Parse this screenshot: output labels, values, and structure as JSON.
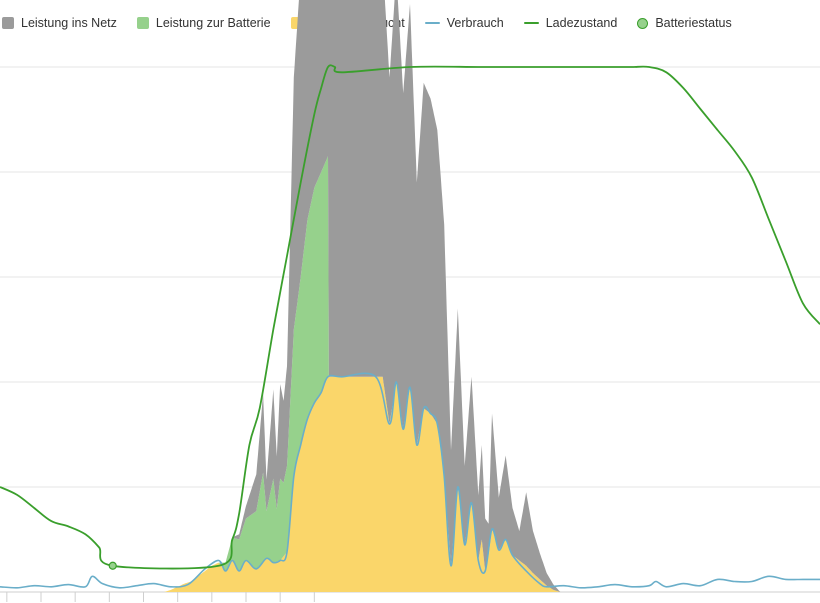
{
  "chart_data": {
    "type": "area",
    "title": "",
    "xlabel": "",
    "ylabel": "",
    "legend_position": "top-left",
    "grid": true,
    "x_range": [
      0,
      24
    ],
    "y_range": [
      0,
      5
    ],
    "soc_range": [
      0,
      100
    ],
    "x_ticks": [
      0.2,
      1.2,
      2.2,
      3.2,
      4.2,
      5.2,
      6.2,
      7.2,
      8.2,
      9.2
    ],
    "series": [
      {
        "name": "Leistung ins Netz",
        "kind": "area",
        "color": "#9b9b9b",
        "x": [
          6.8,
          7.0,
          7.2,
          7.5,
          7.7,
          7.8,
          8.0,
          8.1,
          8.2,
          8.3,
          8.4,
          8.6,
          8.8,
          9.0,
          9.2,
          9.4,
          9.6,
          9.8,
          10.0,
          10.2,
          10.4,
          10.6,
          10.8,
          11.0,
          11.2,
          11.4,
          11.6,
          11.8,
          12.0,
          12.2,
          12.4,
          12.6,
          12.8,
          13.0,
          13.2,
          13.4,
          13.6,
          13.8,
          14.0,
          14.1,
          14.2,
          14.3,
          14.4,
          14.6,
          14.8,
          15.0,
          15.2,
          15.4,
          15.6,
          15.8,
          16.0,
          16.2,
          16.4
        ],
        "values": [
          0.0,
          0.05,
          0.12,
          0.35,
          0.75,
          0.3,
          0.85,
          0.5,
          0.9,
          0.78,
          0.95,
          2.4,
          2.9,
          3.1,
          3.4,
          3.7,
          3.85,
          3.95,
          3.97,
          4.0,
          4.0,
          4.0,
          4.0,
          3.97,
          3.95,
          3.3,
          3.9,
          3.2,
          3.65,
          2.5,
          3.1,
          3.0,
          2.8,
          2.4,
          1.1,
          1.7,
          0.75,
          1.2,
          0.62,
          0.9,
          0.5,
          0.3,
          1.1,
          0.5,
          0.8,
          0.45,
          0.28,
          0.7,
          0.4,
          0.25,
          0.12,
          0.05,
          0.0
        ]
      },
      {
        "name": "Leistung zur Batterie",
        "kind": "area",
        "color": "#96d18c",
        "x": [
          6.4,
          6.6,
          6.8,
          7.0,
          7.2,
          7.5,
          7.7,
          7.8,
          8.0,
          8.1,
          8.2,
          8.3,
          8.4,
          8.6,
          8.8,
          9.0,
          9.2,
          9.4,
          9.6
        ],
        "values": [
          0.0,
          0.08,
          0.22,
          0.3,
          0.4,
          0.55,
          0.85,
          0.45,
          0.8,
          0.5,
          0.78,
          0.7,
          0.82,
          1.4,
          1.6,
          1.9,
          2.05,
          2.1,
          2.1
        ]
      },
      {
        "name": "Direkt verbraucht",
        "kind": "area",
        "color": "#fad66a",
        "x": [
          4.8,
          5.0,
          5.2,
          5.4,
          5.6,
          5.8,
          6.0,
          6.2,
          6.4,
          6.6,
          6.8,
          7.0,
          7.2,
          7.5,
          7.8,
          8.0,
          8.2,
          8.4,
          8.6,
          8.8,
          9.0,
          9.2,
          9.4,
          9.6,
          9.8,
          10.0,
          10.2,
          10.4,
          10.6,
          10.8,
          11.0,
          11.2,
          11.4,
          11.6,
          11.8,
          12.0,
          12.2,
          12.4,
          12.6,
          12.8,
          13.0,
          13.2,
          13.4,
          13.6,
          13.8,
          14.0,
          14.1,
          14.2,
          14.3,
          14.4,
          14.6,
          14.8,
          15.0,
          15.2,
          15.4,
          15.6,
          15.8,
          16.0,
          16.2,
          16.4
        ],
        "values": [
          0.0,
          0.02,
          0.05,
          0.08,
          0.1,
          0.15,
          0.2,
          0.25,
          0.28,
          0.2,
          0.3,
          0.2,
          0.3,
          0.22,
          0.32,
          0.28,
          0.3,
          0.38,
          1.1,
          1.4,
          1.65,
          1.8,
          1.9,
          2.05,
          2.05,
          2.05,
          2.05,
          2.05,
          2.05,
          2.05,
          2.05,
          2.05,
          1.6,
          2.0,
          1.55,
          1.95,
          1.4,
          1.75,
          1.7,
          1.6,
          1.1,
          0.25,
          1.0,
          0.45,
          0.85,
          0.3,
          0.5,
          0.2,
          0.35,
          0.6,
          0.4,
          0.5,
          0.35,
          0.3,
          0.25,
          0.18,
          0.12,
          0.06,
          0.02,
          0.0
        ]
      },
      {
        "name": "Verbrauch",
        "kind": "line",
        "color": "#6aaec9",
        "x": [
          0.0,
          0.5,
          1.0,
          1.5,
          2.0,
          2.5,
          2.7,
          3.0,
          3.5,
          4.0,
          4.5,
          5.0,
          5.5,
          6.0,
          6.4,
          6.6,
          6.8,
          7.0,
          7.2,
          7.5,
          7.8,
          8.0,
          8.2,
          8.4,
          8.6,
          8.8,
          9.0,
          9.2,
          9.4,
          9.6,
          10.0,
          11.0,
          11.4,
          11.6,
          11.8,
          12.0,
          12.2,
          12.4,
          12.6,
          12.8,
          13.0,
          13.2,
          13.4,
          13.6,
          13.8,
          14.0,
          14.2,
          14.4,
          14.6,
          14.8,
          15.0,
          15.4,
          15.8,
          16.0,
          16.5,
          17.0,
          17.5,
          18.0,
          18.5,
          19.0,
          19.2,
          19.5,
          20.0,
          20.5,
          21.0,
          21.5,
          22.0,
          22.5,
          23.0,
          23.5,
          24.0
        ],
        "values": [
          0.05,
          0.04,
          0.06,
          0.05,
          0.07,
          0.05,
          0.15,
          0.08,
          0.04,
          0.06,
          0.08,
          0.05,
          0.07,
          0.22,
          0.3,
          0.2,
          0.3,
          0.2,
          0.3,
          0.22,
          0.32,
          0.28,
          0.3,
          0.38,
          1.1,
          1.4,
          1.65,
          1.8,
          1.9,
          2.05,
          2.05,
          2.05,
          1.6,
          2.0,
          1.55,
          1.95,
          1.4,
          1.75,
          1.7,
          1.6,
          1.1,
          0.25,
          1.0,
          0.45,
          0.85,
          0.3,
          0.2,
          0.6,
          0.4,
          0.5,
          0.35,
          0.2,
          0.08,
          0.05,
          0.06,
          0.04,
          0.05,
          0.07,
          0.05,
          0.06,
          0.1,
          0.05,
          0.08,
          0.06,
          0.12,
          0.1,
          0.1,
          0.15,
          0.12,
          0.12,
          0.12
        ]
      },
      {
        "name": "Ladezustand",
        "kind": "line",
        "axis": "soc",
        "color": "#3a9f2c",
        "x": [
          0.0,
          0.5,
          1.0,
          1.5,
          2.0,
          2.5,
          2.9,
          3.3,
          6.4,
          6.8,
          7.0,
          7.3,
          7.6,
          8.0,
          8.4,
          8.8,
          9.2,
          9.4,
          9.6,
          9.8,
          10.0,
          12.0,
          14.0,
          15.0,
          16.0,
          17.0,
          18.0,
          18.5,
          19.0,
          19.5,
          20.0,
          20.5,
          21.0,
          21.5,
          22.0,
          22.5,
          23.0,
          23.5,
          24.0
        ],
        "values": [
          20,
          18.5,
          16,
          13.5,
          12.5,
          11,
          8.5,
          5,
          5,
          10,
          15,
          28,
          35,
          50,
          64,
          78,
          91,
          96,
          100,
          100,
          99,
          100,
          100,
          100,
          100,
          100,
          100,
          100,
          100,
          99,
          96,
          92,
          88,
          84,
          79,
          71,
          63,
          55,
          51
        ]
      },
      {
        "name": "Batteriestatus",
        "kind": "marker",
        "axis": "soc",
        "color": "#96d18c",
        "stroke": "#3a9f2c",
        "x": [
          3.3
        ],
        "values": [
          5
        ]
      }
    ]
  }
}
